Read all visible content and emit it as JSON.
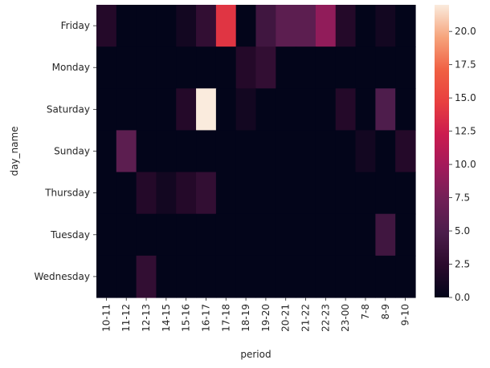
{
  "chart_data": {
    "type": "heatmap",
    "xlabel": "period",
    "ylabel": "day_name",
    "x": [
      "10-11",
      "11-12",
      "12-13",
      "14-15",
      "15-16",
      "16-17",
      "17-18",
      "18-19",
      "19-20",
      "20-21",
      "21-22",
      "22-23",
      "23-00",
      "7-8",
      "8-9",
      "9-10"
    ],
    "y": [
      "Friday",
      "Monday",
      "Saturday",
      "Sunday",
      "Thursday",
      "Tuesday",
      "Wednesday"
    ],
    "values": [
      [
        2,
        0,
        0,
        0,
        1,
        3,
        14,
        0,
        4,
        6,
        6,
        9,
        2,
        0,
        1,
        0
      ],
      [
        0,
        0,
        0,
        0,
        0,
        0,
        0,
        2,
        3,
        0,
        0,
        0,
        0,
        0,
        0,
        0
      ],
      [
        0,
        0,
        0,
        0,
        2,
        22,
        0,
        1,
        0,
        0,
        0,
        0,
        2,
        0,
        5,
        0
      ],
      [
        0,
        6,
        0,
        0,
        0,
        0,
        0,
        0,
        0,
        0,
        0,
        0,
        0,
        1,
        0,
        2
      ],
      [
        0,
        0,
        2,
        1,
        2,
        3,
        0,
        0,
        0,
        0,
        0,
        0,
        0,
        0,
        0,
        0
      ],
      [
        0,
        0,
        0,
        0,
        0,
        0,
        0,
        0,
        0,
        0,
        0,
        0,
        0,
        0,
        4,
        0
      ],
      [
        0,
        0,
        3,
        0,
        0,
        0,
        0,
        0,
        0,
        0,
        0,
        0,
        0,
        0,
        0,
        0
      ]
    ],
    "colorbar": {
      "range": [
        0,
        22
      ],
      "ticks": [
        "0.0",
        "2.5",
        "5.0",
        "7.5",
        "10.0",
        "12.5",
        "15.0",
        "17.5",
        "20.0"
      ],
      "tick_values": [
        0,
        2.5,
        5,
        7.5,
        10,
        12.5,
        15,
        17.5,
        20
      ]
    },
    "colormap": [
      "#03051a",
      "#2b0a2c",
      "#4c1d4b",
      "#701f57",
      "#a11a5b",
      "#cb1b4f",
      "#e83f3f",
      "#f06043",
      "#f6a47c",
      "#faebdd"
    ]
  }
}
